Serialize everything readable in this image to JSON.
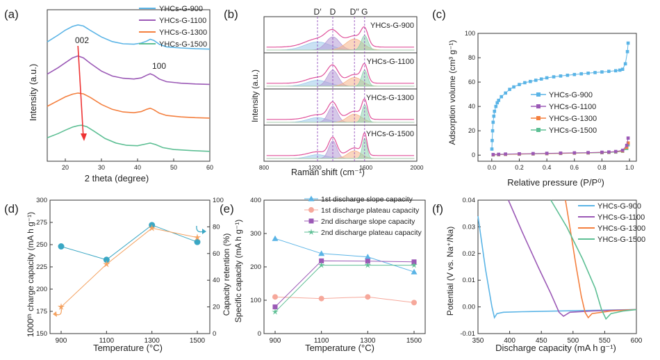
{
  "chart_data": [
    {
      "panel": "(a)",
      "type": "line",
      "xlabel": "2 theta (degree)",
      "ylabel": "Intensity (a.u.)",
      "xlim": [
        15,
        60
      ],
      "xticks": [
        20,
        30,
        40,
        50,
        60
      ],
      "annotations": [
        "002",
        "100"
      ],
      "series": [
        {
          "name": "YHCs-G-900",
          "color": "#5ab4e6",
          "x": [
            15,
            18,
            20,
            22,
            23.5,
            25,
            27,
            30,
            33,
            36,
            39,
            41,
            42.5,
            43.5,
            44.5,
            46,
            48,
            52,
            56,
            60
          ],
          "y": [
            3.15,
            3.33,
            3.46,
            3.56,
            3.6,
            3.57,
            3.45,
            3.28,
            3.16,
            3.1,
            3.09,
            3.12,
            3.17,
            3.22,
            3.19,
            3.09,
            3.02,
            2.99,
            2.97,
            2.96
          ]
        },
        {
          "name": "YHCs-G-1100",
          "color": "#9b59b6",
          "x": [
            15,
            18,
            20,
            22,
            23.5,
            25,
            27,
            30,
            33,
            36,
            39,
            41,
            42.5,
            43.5,
            44.5,
            46,
            48,
            52,
            56,
            60
          ],
          "y": [
            2.3,
            2.47,
            2.6,
            2.73,
            2.78,
            2.73,
            2.58,
            2.38,
            2.25,
            2.19,
            2.17,
            2.2,
            2.27,
            2.31,
            2.27,
            2.17,
            2.1,
            2.06,
            2.04,
            2.03
          ]
        },
        {
          "name": "YHCs-G-1300",
          "color": "#f47f3e",
          "x": [
            15,
            18,
            20,
            22,
            23.5,
            25,
            27,
            30,
            33,
            36,
            39,
            41,
            42.5,
            43.5,
            44.5,
            46,
            48,
            52,
            56,
            60
          ],
          "y": [
            1.45,
            1.6,
            1.7,
            1.77,
            1.8,
            1.78,
            1.68,
            1.5,
            1.37,
            1.3,
            1.28,
            1.31,
            1.37,
            1.4,
            1.36,
            1.27,
            1.21,
            1.17,
            1.15,
            1.14
          ]
        },
        {
          "name": "YHCs-G-1500",
          "color": "#5dbf94",
          "x": [
            15,
            18,
            20,
            22,
            23.5,
            24.5,
            26,
            28,
            31,
            34,
            37,
            40,
            42,
            43.5,
            45,
            47,
            50,
            55,
            60
          ],
          "y": [
            0.62,
            0.73,
            0.82,
            0.9,
            0.94,
            0.95,
            0.91,
            0.79,
            0.6,
            0.48,
            0.42,
            0.41,
            0.45,
            0.48,
            0.44,
            0.36,
            0.31,
            0.28,
            0.26
          ]
        }
      ]
    },
    {
      "panel": "(b)",
      "type": "line",
      "xlabel": "Raman shift (cm⁻¹)",
      "ylabel": "Intensity (a.u.)",
      "xlim": [
        800,
        2000
      ],
      "xticks": [
        800,
        1200,
        1600,
        2000
      ],
      "band_labels": [
        "D′",
        "D",
        "D′′",
        "G"
      ],
      "band_positions": [
        1220,
        1340,
        1510,
        1590
      ],
      "series": [
        {
          "name": "YHCs-G-900",
          "peaks": [
            {
              "center": 1220,
              "height": 0.28,
              "width": 140
            },
            {
              "center": 1340,
              "height": 0.45,
              "width": 75
            },
            {
              "center": 1510,
              "height": 0.38,
              "width": 95
            },
            {
              "center": 1590,
              "height": 0.5,
              "width": 38
            }
          ]
        },
        {
          "name": "YHCs-G-1100",
          "peaks": [
            {
              "center": 1220,
              "height": 0.2,
              "width": 120
            },
            {
              "center": 1340,
              "height": 0.55,
              "width": 60
            },
            {
              "center": 1510,
              "height": 0.3,
              "width": 85
            },
            {
              "center": 1590,
              "height": 0.55,
              "width": 34
            }
          ]
        },
        {
          "name": "YHCs-G-1300",
          "peaks": [
            {
              "center": 1220,
              "height": 0.16,
              "width": 110
            },
            {
              "center": 1340,
              "height": 0.55,
              "width": 52
            },
            {
              "center": 1510,
              "height": 0.28,
              "width": 80
            },
            {
              "center": 1590,
              "height": 0.6,
              "width": 30
            }
          ]
        },
        {
          "name": "YHCs-G-1500",
          "peaks": [
            {
              "center": 1220,
              "height": 0.13,
              "width": 100
            },
            {
              "center": 1340,
              "height": 0.6,
              "width": 45
            },
            {
              "center": 1510,
              "height": 0.26,
              "width": 75
            },
            {
              "center": 1590,
              "height": 0.7,
              "width": 26
            }
          ]
        }
      ]
    },
    {
      "panel": "(c)",
      "type": "scatter",
      "xlabel": "Relative pressure (P/P⁰)",
      "ylabel": "Adsorption volume (cm³ g⁻¹)",
      "xlim": [
        -0.1,
        1.05
      ],
      "ylim": [
        -5,
        100
      ],
      "xticks": [
        0.0,
        0.2,
        0.4,
        0.6,
        0.8,
        1.0
      ],
      "yticks": [
        0,
        20,
        40,
        60,
        80,
        100
      ],
      "series": [
        {
          "name": "YHCs-G-900",
          "color": "#5ab4e6",
          "marker": "square",
          "x": [
            0.001,
            0.003,
            0.006,
            0.01,
            0.015,
            0.02,
            0.03,
            0.04,
            0.05,
            0.07,
            0.1,
            0.13,
            0.16,
            0.2,
            0.24,
            0.28,
            0.32,
            0.36,
            0.4,
            0.45,
            0.5,
            0.55,
            0.6,
            0.65,
            0.7,
            0.75,
            0.8,
            0.85,
            0.9,
            0.93,
            0.95,
            0.97,
            0.985,
            0.99
          ],
          "y": [
            5,
            12,
            20,
            27,
            32,
            36,
            40,
            43,
            45,
            48,
            51,
            54,
            56,
            58,
            59.5,
            60.5,
            61.5,
            62.5,
            63.5,
            64.3,
            65,
            65.6,
            66.2,
            66.8,
            67.3,
            67.8,
            68.3,
            68.8,
            69.3,
            69.8,
            70.5,
            75,
            85,
            92
          ]
        },
        {
          "name": "YHCs-G-1100",
          "color": "#9b59b6",
          "marker": "square",
          "x": [
            0.01,
            0.05,
            0.1,
            0.2,
            0.3,
            0.4,
            0.5,
            0.6,
            0.7,
            0.8,
            0.85,
            0.9,
            0.95,
            0.98,
            0.99
          ],
          "y": [
            0.5,
            0.7,
            0.9,
            1.1,
            1.3,
            1.5,
            1.7,
            1.9,
            2.1,
            2.4,
            2.6,
            3,
            4,
            8,
            14
          ]
        },
        {
          "name": "YHCs-G-1300",
          "color": "#f47f3e",
          "marker": "square",
          "x": [
            0.01,
            0.05,
            0.1,
            0.2,
            0.3,
            0.4,
            0.5,
            0.6,
            0.7,
            0.8,
            0.85,
            0.9,
            0.95,
            0.98,
            0.99
          ],
          "y": [
            0.3,
            0.5,
            0.7,
            0.9,
            1.1,
            1.3,
            1.5,
            1.7,
            1.9,
            2.2,
            2.4,
            2.8,
            3.5,
            6.5,
            10
          ]
        },
        {
          "name": "YHCs-G-1500",
          "color": "#5dbf94",
          "marker": "square",
          "x": [
            0.01,
            0.05,
            0.1,
            0.2,
            0.3,
            0.4,
            0.5,
            0.6,
            0.7,
            0.8,
            0.85,
            0.9,
            0.95,
            0.98,
            0.99
          ],
          "y": [
            0.2,
            0.4,
            0.6,
            0.8,
            1,
            1.2,
            1.4,
            1.6,
            1.8,
            2,
            2.2,
            2.5,
            3.2,
            5.5,
            8.5
          ]
        }
      ]
    },
    {
      "panel": "(d)",
      "type": "line",
      "xlabel": "Temperature (°C)",
      "ylabel": "1000ᵗʰ charge capacity (mA h g⁻¹)",
      "ylabel_right": "Capacity retention (%)",
      "categories": [
        900,
        1100,
        1300,
        1500
      ],
      "ylim": [
        150,
        300
      ],
      "yticks": [
        150,
        175,
        200,
        225,
        250,
        275,
        300
      ],
      "ylim_right": [
        0,
        100
      ],
      "yticks_right": [
        0,
        20,
        40,
        60,
        80,
        100
      ],
      "series": [
        {
          "name": "",
          "axis": "left",
          "color": "#3aa7c4",
          "marker": "circle",
          "values": [
            248,
            233,
            272,
            253
          ]
        },
        {
          "name": "",
          "axis": "right",
          "color": "#f4a261",
          "marker": "star",
          "values": [
            20,
            52,
            79,
            72
          ]
        }
      ]
    },
    {
      "panel": "(e)",
      "type": "line",
      "xlabel": "Temperature (°C)",
      "ylabel": "Specific capacity (mA h g⁻¹)",
      "categories": [
        900,
        1100,
        1300,
        1500
      ],
      "ylim": [
        0,
        400
      ],
      "yticks": [
        0,
        100,
        200,
        300,
        400
      ],
      "series": [
        {
          "name": "1st discharge slope capacity",
          "color": "#5ab4e6",
          "marker": "triangle",
          "values": [
            285,
            240,
            230,
            185
          ]
        },
        {
          "name": "1st discharge plateau capacity",
          "color": "#f6a89b",
          "marker": "circle",
          "values": [
            110,
            105,
            110,
            93
          ]
        },
        {
          "name": "2nd discharge slope capacity",
          "color": "#9b59b6",
          "marker": "square",
          "values": [
            80,
            218,
            217,
            215
          ]
        },
        {
          "name": "2nd discharge plateau capacity",
          "color": "#5dbf94",
          "marker": "star",
          "values": [
            65,
            205,
            205,
            205
          ]
        }
      ]
    },
    {
      "panel": "(f)",
      "type": "line",
      "xlabel": "Discharge capacity (mA h g⁻¹)",
      "ylabel": "Potential (V vs. Na⁺/Na)",
      "xlim": [
        350,
        600
      ],
      "ylim": [
        -0.01,
        0.04
      ],
      "xticks": [
        350,
        400,
        450,
        500,
        550,
        600
      ],
      "yticks": [
        -0.01,
        0.0,
        0.01,
        0.02,
        0.03,
        0.04
      ],
      "series": [
        {
          "name": "YHCs-G-900",
          "color": "#5ab4e6",
          "x": [
            350,
            362,
            372,
            376,
            380,
            390,
            420,
            480,
            600
          ],
          "y": [
            0.034,
            0.014,
            0.0,
            -0.004,
            -0.0025,
            -0.002,
            -0.0018,
            -0.0015,
            -0.001
          ]
        },
        {
          "name": "YHCs-G-1100",
          "color": "#9b59b6",
          "x": [
            398,
            420,
            445,
            465,
            478,
            485,
            495,
            530,
            600
          ],
          "y": [
            0.04,
            0.028,
            0.015,
            0.005,
            -0.002,
            -0.0035,
            -0.002,
            -0.0015,
            -0.001
          ]
        },
        {
          "name": "YHCs-G-1300",
          "color": "#f47f3e",
          "x": [
            488,
            495,
            505,
            513,
            519,
            524,
            530,
            560,
            600
          ],
          "y": [
            0.04,
            0.03,
            0.015,
            0.004,
            -0.002,
            -0.004,
            -0.0025,
            -0.0015,
            -0.001
          ]
        },
        {
          "name": "YHCs-G-1500",
          "color": "#5dbf94",
          "x": [
            465,
            490,
            515,
            535,
            545,
            552,
            560,
            580,
            600
          ],
          "y": [
            0.04,
            0.03,
            0.018,
            0.007,
            -0.001,
            -0.0045,
            -0.0025,
            -0.0015,
            -0.001
          ]
        }
      ]
    }
  ]
}
